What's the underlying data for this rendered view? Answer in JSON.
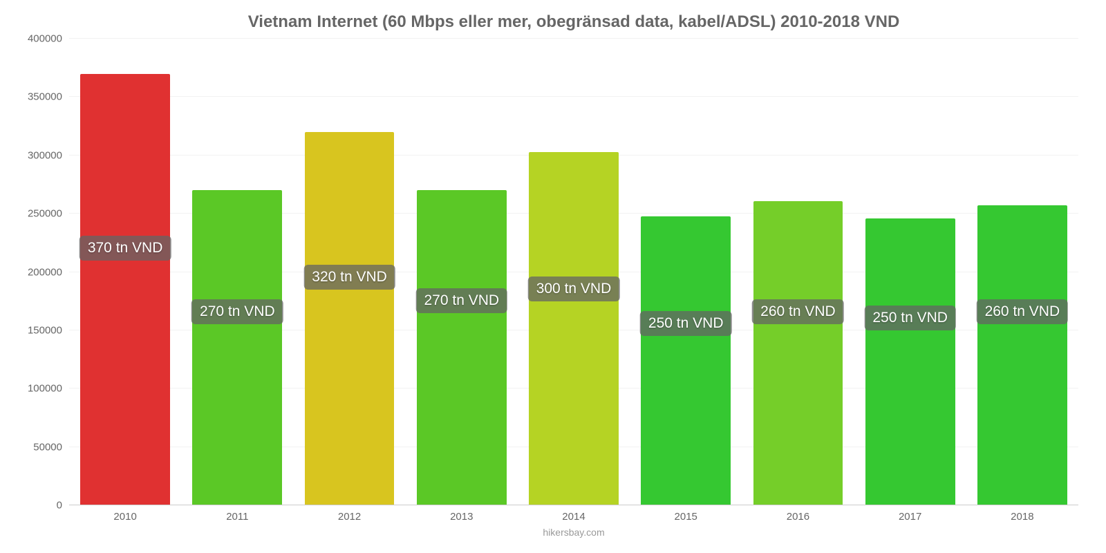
{
  "chart": {
    "type": "bar",
    "title": "Vietnam Internet (60 Mbps eller mer, obegränsad data, kabel/ADSL) 2010-2018 VND",
    "title_fontsize": 24,
    "title_color": "#666666",
    "categories": [
      "2010",
      "2011",
      "2012",
      "2013",
      "2014",
      "2015",
      "2016",
      "2017",
      "2018"
    ],
    "values": [
      370000,
      270000,
      320000,
      270000,
      303000,
      248000,
      261000,
      246000,
      257000
    ],
    "value_labels": [
      "370 tn VND",
      "270 tn VND",
      "320 tn VND",
      "270 tn VND",
      "300 tn VND",
      "250 tn VND",
      "260 tn VND",
      "250 tn VND",
      "260 tn VND"
    ],
    "bar_colors": [
      "#e03131",
      "#5bc826",
      "#d8c51f",
      "#5bc826",
      "#b5d324",
      "#35c831",
      "#75ce29",
      "#35c831",
      "#35c831"
    ],
    "ylim": [
      0,
      400000
    ],
    "ytick_step": 50000,
    "ytick_labels": [
      "0",
      "50000",
      "100000",
      "150000",
      "200000",
      "250000",
      "300000",
      "350000",
      "400000"
    ],
    "bar_width_pct": 80,
    "background_color": "#ffffff",
    "grid_color": "#f2f2f2",
    "axis_font_color": "#666666",
    "axis_fontsize": 15,
    "datalabel_fontsize": 21,
    "attribution": "hikersbay.com",
    "attribution_fontsize": 14,
    "attribution_color": "#999999"
  }
}
